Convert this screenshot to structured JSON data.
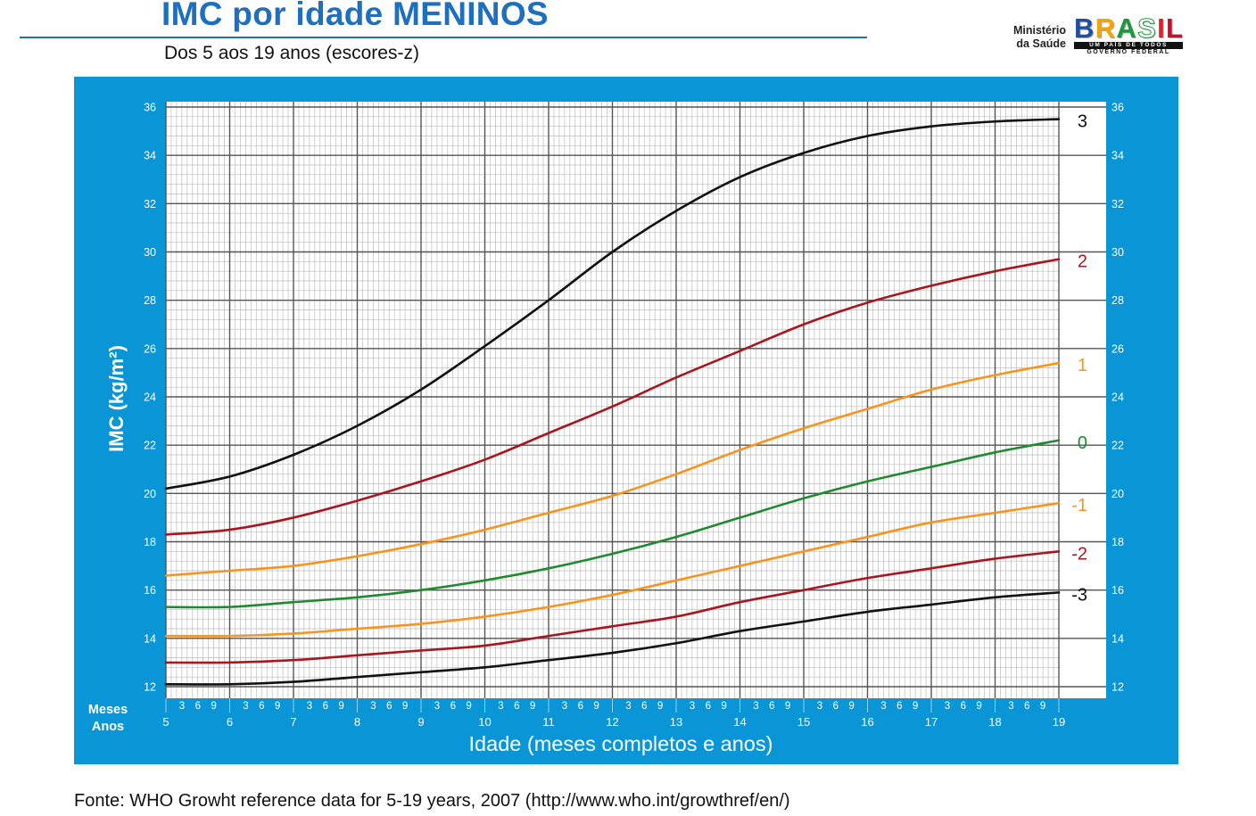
{
  "header": {
    "title": "IMC por idade MENINOS",
    "subtitle": "Dos 5 aos 19 anos (escores-z)"
  },
  "logo": {
    "ministry_line1": "Ministério",
    "ministry_line2": "da Saúde",
    "wordmark": "BRASIL",
    "tagline": "UM PAÍS DE TODOS",
    "government": "GOVERNO FEDERAL"
  },
  "colors": {
    "title": "#1e6fbf",
    "panel": "#0a96d6",
    "major_grid": "#555555",
    "minor_grid": "#bdbdbd",
    "axis_text": "#ffffff"
  },
  "chart_data": {
    "type": "line",
    "ylabel": "IMC (kg/m²)",
    "xlabel": "Idade (meses completos e anos)",
    "x_row_labels": {
      "months": "Meses",
      "years": "Anos"
    },
    "xlim": [
      5,
      19
    ],
    "ylim": [
      12,
      36
    ],
    "grid": true,
    "x": [
      5,
      6,
      7,
      8,
      9,
      10,
      11,
      12,
      13,
      14,
      15,
      16,
      17,
      18,
      19
    ],
    "x_ticks": [
      5,
      6,
      7,
      8,
      9,
      10,
      11,
      12,
      13,
      14,
      15,
      16,
      17,
      18,
      19
    ],
    "month_ticks": [
      3,
      6,
      9
    ],
    "y_ticks": [
      12,
      14,
      16,
      18,
      20,
      22,
      24,
      26,
      28,
      30,
      32,
      34,
      36
    ],
    "series": [
      {
        "name": "3",
        "color": "#111111",
        "values": [
          20.2,
          20.7,
          21.6,
          22.8,
          24.3,
          26.1,
          28.0,
          30.0,
          31.7,
          33.1,
          34.1,
          34.8,
          35.2,
          35.4,
          35.5
        ]
      },
      {
        "name": "2",
        "color": "#a8161f",
        "values": [
          18.3,
          18.5,
          19.0,
          19.7,
          20.5,
          21.4,
          22.5,
          23.6,
          24.8,
          25.9,
          27.0,
          27.9,
          28.6,
          29.2,
          29.7
        ]
      },
      {
        "name": "1",
        "color": "#f7941d",
        "values": [
          16.6,
          16.8,
          17.0,
          17.4,
          17.9,
          18.5,
          19.2,
          19.9,
          20.8,
          21.8,
          22.7,
          23.5,
          24.3,
          24.9,
          25.4
        ]
      },
      {
        "name": "0",
        "color": "#1f8a2f",
        "values": [
          15.3,
          15.3,
          15.5,
          15.7,
          16.0,
          16.4,
          16.9,
          17.5,
          18.2,
          19.0,
          19.8,
          20.5,
          21.1,
          21.7,
          22.2
        ]
      },
      {
        "name": "-1",
        "color": "#f7941d",
        "values": [
          14.1,
          14.1,
          14.2,
          14.4,
          14.6,
          14.9,
          15.3,
          15.8,
          16.4,
          17.0,
          17.6,
          18.2,
          18.8,
          19.2,
          19.6
        ]
      },
      {
        "name": "-2",
        "color": "#a8161f",
        "values": [
          13.0,
          13.0,
          13.1,
          13.3,
          13.5,
          13.7,
          14.1,
          14.5,
          14.9,
          15.5,
          16.0,
          16.5,
          16.9,
          17.3,
          17.6
        ]
      },
      {
        "name": "-3",
        "color": "#111111",
        "values": [
          12.1,
          12.1,
          12.2,
          12.4,
          12.6,
          12.8,
          13.1,
          13.4,
          13.8,
          14.3,
          14.7,
          15.1,
          15.4,
          15.7,
          15.9
        ]
      }
    ]
  },
  "footer": {
    "source": "Fonte: WHO Growht reference data for 5-19 years, 2007 (http://www.who.int/growthref/en/)"
  }
}
